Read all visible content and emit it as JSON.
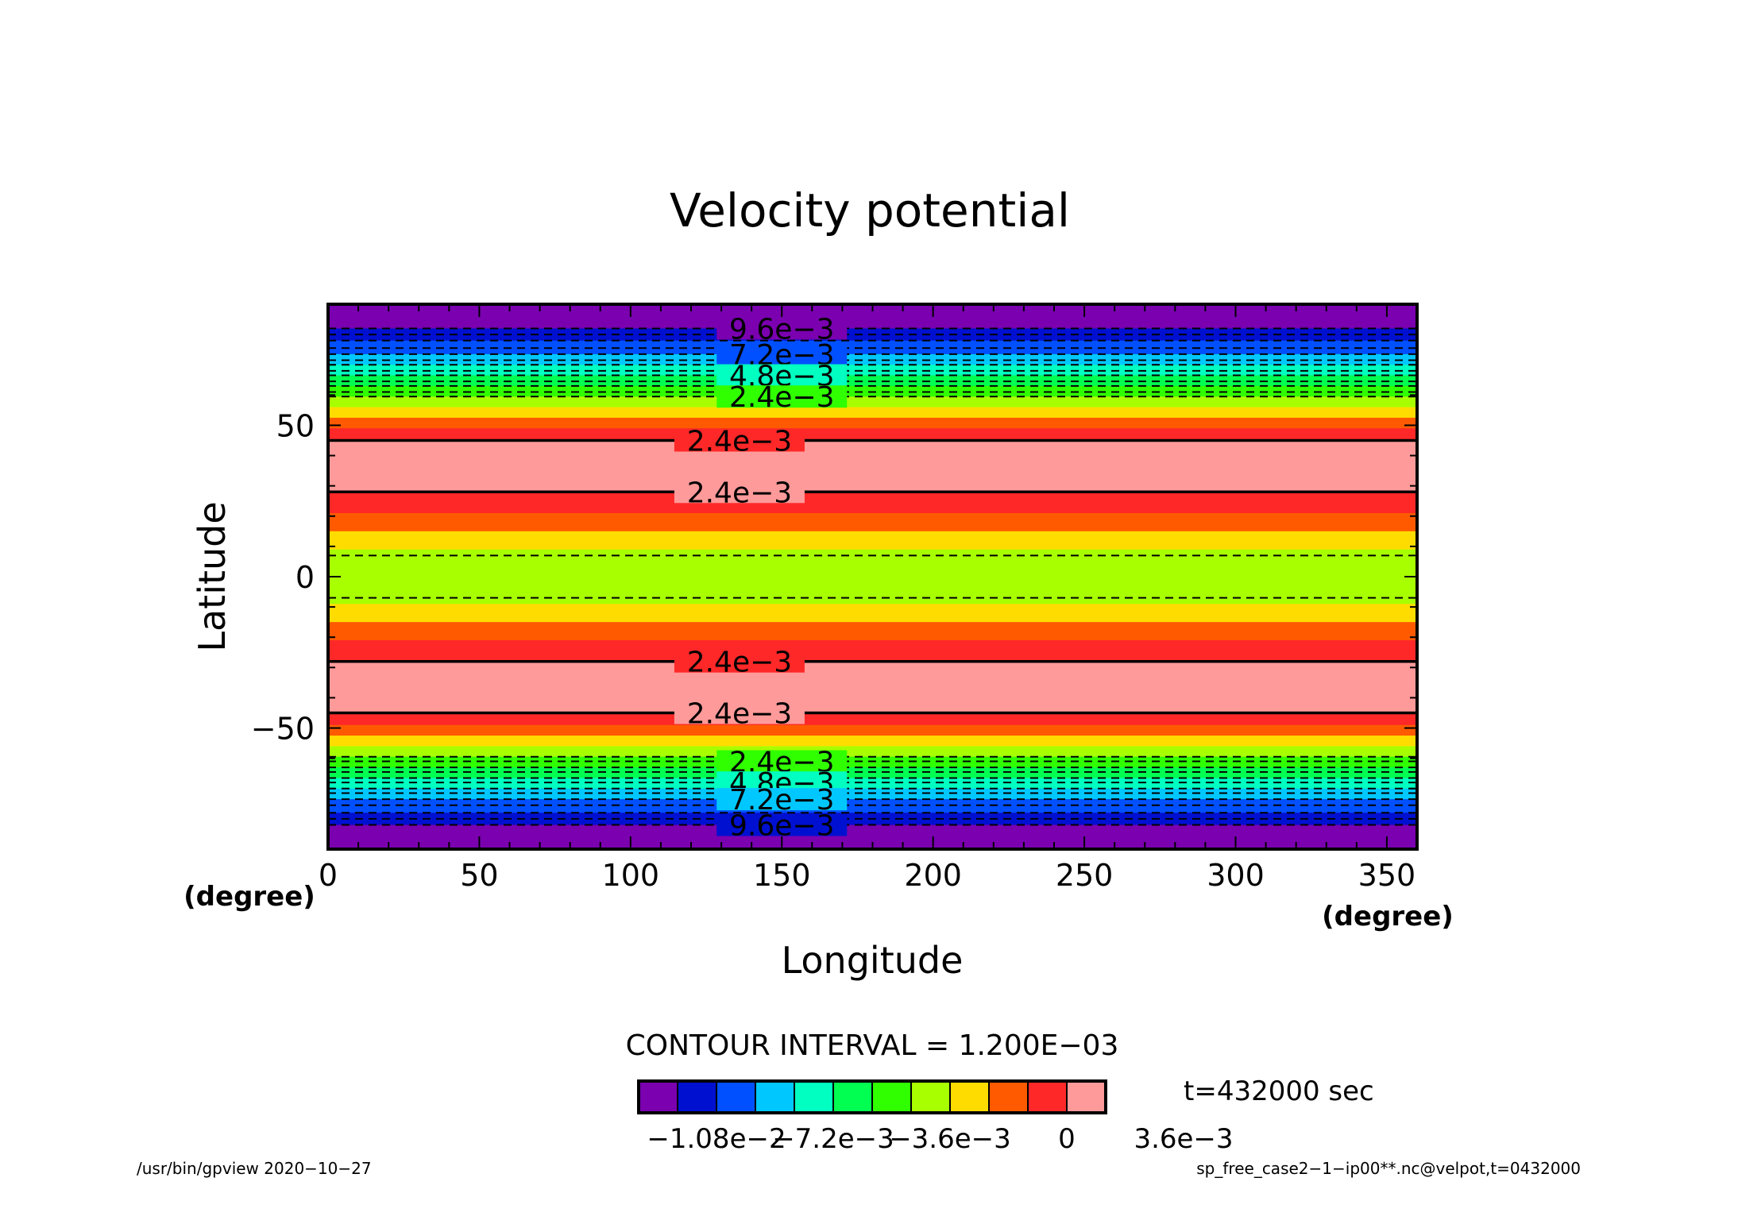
{
  "chart_data": {
    "type": "heatmap",
    "title": "Velocity potential",
    "xlabel": "Longitude",
    "ylabel": "Latitude",
    "x_unit": "(degree)",
    "y_unit": "(degree)",
    "xlim": [
      0,
      360
    ],
    "ylim": [
      -90,
      90
    ],
    "x_ticks": [
      0,
      50,
      100,
      150,
      200,
      250,
      300,
      350
    ],
    "y_ticks": [
      -50,
      0,
      50
    ],
    "x_tick_labels": [
      "0",
      "50",
      "100",
      "150",
      "200",
      "250",
      "300",
      "350"
    ],
    "y_tick_labels": [
      "−50",
      "0",
      "50"
    ],
    "contour_interval_text": "CONTOUR INTERVAL = 1.200E−03",
    "contour_interval": 0.0012,
    "time_label": "t=432000 sec",
    "colorbar": {
      "colors": [
        "#7a00b0",
        "#0010d0",
        "#0050ff",
        "#00c8ff",
        "#00ffc0",
        "#00ff50",
        "#30ff00",
        "#a8ff00",
        "#ffdc00",
        "#ff5a00",
        "#ff2828",
        "#ff9a9a"
      ],
      "tick_values": [
        -0.0108,
        -0.0072,
        -0.0036,
        0,
        0.0036
      ],
      "tick_labels": [
        "−1.08e−2",
        "−7.2e−3",
        "−3.6e−3",
        "0",
        "3.6e−3"
      ]
    },
    "bands": [
      {
        "lat_from": 82,
        "lat_to": 90,
        "color": "#7a00b0"
      },
      {
        "lat_from": 78,
        "lat_to": 82,
        "color": "#0010d0"
      },
      {
        "lat_from": 73.5,
        "lat_to": 78,
        "color": "#0050ff"
      },
      {
        "lat_from": 70,
        "lat_to": 73.5,
        "color": "#00c8ff"
      },
      {
        "lat_from": 66.5,
        "lat_to": 70,
        "color": "#00ffc0"
      },
      {
        "lat_from": 63,
        "lat_to": 66.5,
        "color": "#00ff50"
      },
      {
        "lat_from": 59.5,
        "lat_to": 63,
        "color": "#30ff00"
      },
      {
        "lat_from": 56,
        "lat_to": 59.5,
        "color": "#a8ff00"
      },
      {
        "lat_from": 52.5,
        "lat_to": 56,
        "color": "#ffdc00"
      },
      {
        "lat_from": 49,
        "lat_to": 52.5,
        "color": "#ff5a00"
      },
      {
        "lat_from": 45,
        "lat_to": 49,
        "color": "#ff2828"
      },
      {
        "lat_from": 28,
        "lat_to": 45,
        "color": "#ff9a9a"
      },
      {
        "lat_from": 21,
        "lat_to": 28,
        "color": "#ff2828"
      },
      {
        "lat_from": 15,
        "lat_to": 21,
        "color": "#ff5a00"
      },
      {
        "lat_from": 9,
        "lat_to": 15,
        "color": "#ffdc00"
      },
      {
        "lat_from": -9,
        "lat_to": 9,
        "color": "#a8ff00"
      },
      {
        "lat_from": -15,
        "lat_to": -9,
        "color": "#ffdc00"
      },
      {
        "lat_from": -21,
        "lat_to": -15,
        "color": "#ff5a00"
      },
      {
        "lat_from": -28,
        "lat_to": -21,
        "color": "#ff2828"
      },
      {
        "lat_from": -45,
        "lat_to": -28,
        "color": "#ff9a9a"
      },
      {
        "lat_from": -49,
        "lat_to": -45,
        "color": "#ff2828"
      },
      {
        "lat_from": -52.5,
        "lat_to": -49,
        "color": "#ff5a00"
      },
      {
        "lat_from": -56,
        "lat_to": -52.5,
        "color": "#ffdc00"
      },
      {
        "lat_from": -59.5,
        "lat_to": -56,
        "color": "#a8ff00"
      },
      {
        "lat_from": -63,
        "lat_to": -59.5,
        "color": "#30ff00"
      },
      {
        "lat_from": -66.5,
        "lat_to": -63,
        "color": "#00ff50"
      },
      {
        "lat_from": -70,
        "lat_to": -66.5,
        "color": "#00ffc0"
      },
      {
        "lat_from": -73.5,
        "lat_to": -70,
        "color": "#00c8ff"
      },
      {
        "lat_from": -78,
        "lat_to": -73.5,
        "color": "#0050ff"
      },
      {
        "lat_from": -82,
        "lat_to": -78,
        "color": "#0010d0"
      },
      {
        "lat_from": -90,
        "lat_to": -82,
        "color": "#7a00b0"
      }
    ],
    "contours": [
      {
        "lat": 82,
        "dashed": true
      },
      {
        "lat": 80,
        "dashed": true
      },
      {
        "lat": 78,
        "dashed": true
      },
      {
        "lat": 75.5,
        "dashed": true
      },
      {
        "lat": 73.5,
        "dashed": true
      },
      {
        "lat": 71.5,
        "dashed": true
      },
      {
        "lat": 70,
        "dashed": true
      },
      {
        "lat": 68,
        "dashed": true
      },
      {
        "lat": 66.5,
        "dashed": true
      },
      {
        "lat": 64.5,
        "dashed": true
      },
      {
        "lat": 63,
        "dashed": true
      },
      {
        "lat": 61,
        "dashed": true
      },
      {
        "lat": 59.5,
        "dashed": true
      },
      {
        "lat": 45,
        "dashed": false
      },
      {
        "lat": 28,
        "dashed": false
      },
      {
        "lat": 7,
        "dashed": true
      },
      {
        "lat": -7,
        "dashed": true
      },
      {
        "lat": -28,
        "dashed": false
      },
      {
        "lat": -45,
        "dashed": false
      },
      {
        "lat": -59.5,
        "dashed": true
      },
      {
        "lat": -61,
        "dashed": true
      },
      {
        "lat": -63,
        "dashed": true
      },
      {
        "lat": -64.5,
        "dashed": true
      },
      {
        "lat": -66.5,
        "dashed": true
      },
      {
        "lat": -68,
        "dashed": true
      },
      {
        "lat": -70,
        "dashed": true
      },
      {
        "lat": -71.5,
        "dashed": true
      },
      {
        "lat": -73.5,
        "dashed": true
      },
      {
        "lat": -75.5,
        "dashed": true
      },
      {
        "lat": -78,
        "dashed": true
      },
      {
        "lat": -80,
        "dashed": true
      },
      {
        "lat": -82,
        "dashed": true
      }
    ],
    "contour_labels": [
      {
        "text": "9.6e−3",
        "lat": 82,
        "lon": 150
      },
      {
        "text": "7.2e−3",
        "lat": 73.5,
        "lon": 150
      },
      {
        "text": "4.8e−3",
        "lat": 66.5,
        "lon": 150
      },
      {
        "text": "2.4e−3",
        "lat": 59.5,
        "lon": 150
      },
      {
        "text": "2.4e−3",
        "lat": 45,
        "lon": 136
      },
      {
        "text": "2.4e−3",
        "lat": 28,
        "lon": 136
      },
      {
        "text": "2.4e−3",
        "lat": -28,
        "lon": 136
      },
      {
        "text": "2.4e−3",
        "lat": -45,
        "lon": 136
      },
      {
        "text": "2.4e−3",
        "lat": -61,
        "lon": 150
      },
      {
        "text": "4.8e−3",
        "lat": -68,
        "lon": 150
      },
      {
        "text": "7.2e−3",
        "lat": -73.5,
        "lon": 150
      },
      {
        "text": "9.6e−3",
        "lat": -82,
        "lon": 150
      }
    ]
  },
  "footer": {
    "left": "/usr/bin/gpview   2020−10−27",
    "right": "sp_free_case2−1−ip00**.nc@velpot,t=0432000"
  }
}
